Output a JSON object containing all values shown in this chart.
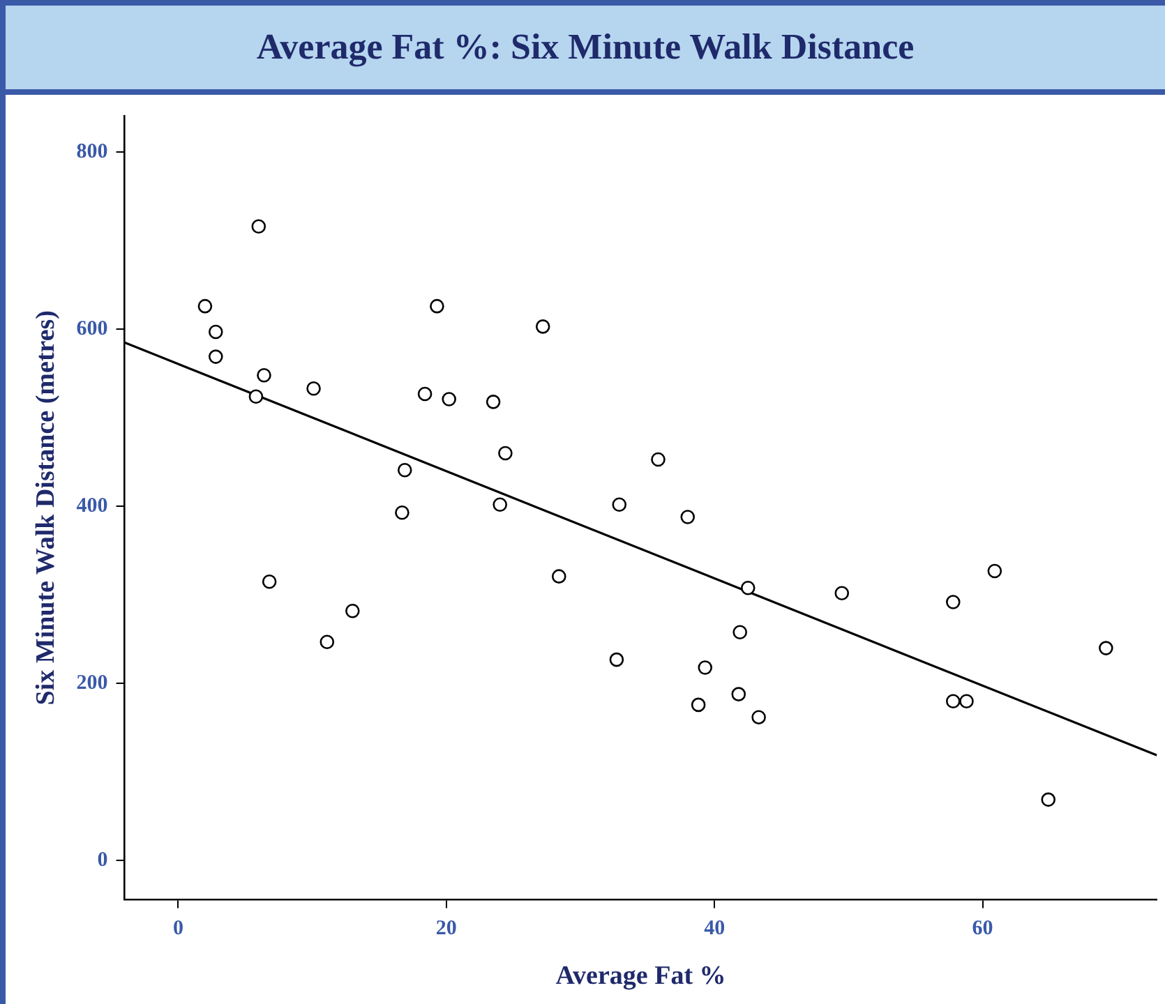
{
  "chart_data": {
    "type": "scatter",
    "title": "Average Fat %: Six Minute Walk Distance",
    "xlabel": "Average Fat %",
    "ylabel": "Six Minute Walk Distance (metres)",
    "xlim": [
      -4,
      73
    ],
    "ylim": [
      -44,
      841
    ],
    "xticks": [
      0,
      20,
      40,
      60
    ],
    "yticks": [
      0,
      200,
      400,
      600,
      800
    ],
    "grid": false,
    "legend": false,
    "marker": "circle",
    "series": [
      {
        "color": "#000000",
        "x": [
          2.0,
          6.0,
          2.8,
          2.8,
          6.4,
          5.8,
          10.1,
          6.8,
          11.1,
          13.0,
          16.7,
          16.9,
          18.4,
          19.3,
          20.2,
          23.5,
          24.4,
          24.0,
          27.2,
          28.4,
          32.7,
          32.9,
          35.8,
          38.0,
          38.8,
          39.3,
          41.9,
          41.8,
          42.5,
          43.3,
          49.5,
          57.8,
          57.8,
          58.8,
          60.9,
          64.9,
          69.2
        ],
        "values": [
          626,
          716,
          597,
          569,
          548,
          524,
          533,
          315,
          247,
          282,
          393,
          441,
          527,
          626,
          521,
          518,
          460,
          402,
          603,
          321,
          227,
          402,
          453,
          388,
          176,
          218,
          258,
          188,
          308,
          162,
          302,
          292,
          180,
          180,
          327,
          69,
          240
        ]
      },
      {
        "type": "line",
        "color": "#000000",
        "marker": "none",
        "x": [
          -4,
          73
        ],
        "values": [
          585,
          119
        ]
      }
    ]
  }
}
